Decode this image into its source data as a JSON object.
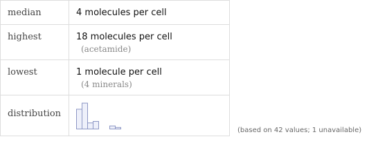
{
  "table": {
    "rows": [
      {
        "label": "median",
        "value": "4 molecules per cell"
      },
      {
        "label": "highest",
        "value": "18 molecules per cell",
        "note": "(acetamide)"
      },
      {
        "label": "lowest",
        "value": "1 molecule per cell",
        "note": "(4 minerals)"
      }
    ],
    "distribution": {
      "label": "distribution",
      "counts": [
        13,
        17,
        4,
        5,
        0,
        0,
        2,
        1
      ]
    }
  },
  "footnote": "(based on 42 values; 1 unavailable)"
}
